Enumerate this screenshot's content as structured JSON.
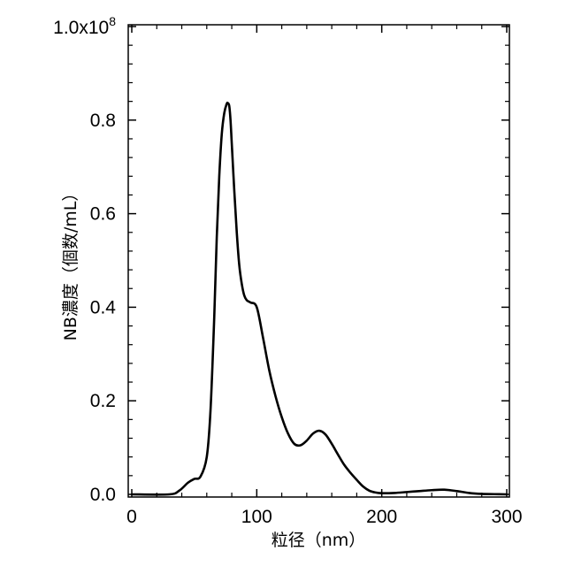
{
  "chart_data": {
    "type": "line",
    "xlabel": "粒径（nm）",
    "ylabel": "NB濃度（個数/mL）",
    "xlim": [
      0,
      300
    ],
    "ylim": [
      0,
      100000000
    ],
    "x_ticks": [
      "0",
      "100",
      "200",
      "300"
    ],
    "y_ticks": [
      {
        "value": 0,
        "label": "0.0"
      },
      {
        "value": 20000000,
        "label": "0.2"
      },
      {
        "value": 40000000,
        "label": "0.4"
      },
      {
        "value": 60000000,
        "label": "0.6"
      },
      {
        "value": 80000000,
        "label": "0.8"
      }
    ],
    "y_top_label": {
      "mantissa": "1.0x10",
      "exponent": "8"
    },
    "grid": false,
    "series": [
      {
        "line_color": "#000000",
        "x": [
          0,
          30,
          38,
          45,
          50,
          55,
          60,
          63,
          66,
          68,
          70,
          72,
          74,
          76,
          77,
          78,
          79,
          80,
          82,
          84,
          86,
          88,
          90,
          92,
          95,
          100,
          105,
          110,
          115,
          120,
          125,
          130,
          135,
          140,
          145,
          150,
          155,
          160,
          165,
          170,
          175,
          180,
          185,
          190,
          195,
          200,
          210,
          220,
          230,
          240,
          250,
          260,
          270,
          280,
          290,
          300
        ],
        "y": [
          0,
          0,
          800000,
          2500000,
          3300000,
          3800000,
          8000000,
          18000000,
          38000000,
          55000000,
          68000000,
          77000000,
          81500000,
          83500000,
          83600000,
          83000000,
          80000000,
          75000000,
          65000000,
          56000000,
          49000000,
          45000000,
          42500000,
          41500000,
          41000000,
          40000000,
          33500000,
          26500000,
          21000000,
          16500000,
          13000000,
          10800000,
          10500000,
          11500000,
          13000000,
          13600000,
          12800000,
          10800000,
          8500000,
          6300000,
          4600000,
          3100000,
          1700000,
          800000,
          400000,
          250000,
          300000,
          500000,
          700000,
          900000,
          1000000,
          700000,
          300000,
          100000,
          50000,
          0
        ]
      }
    ]
  }
}
